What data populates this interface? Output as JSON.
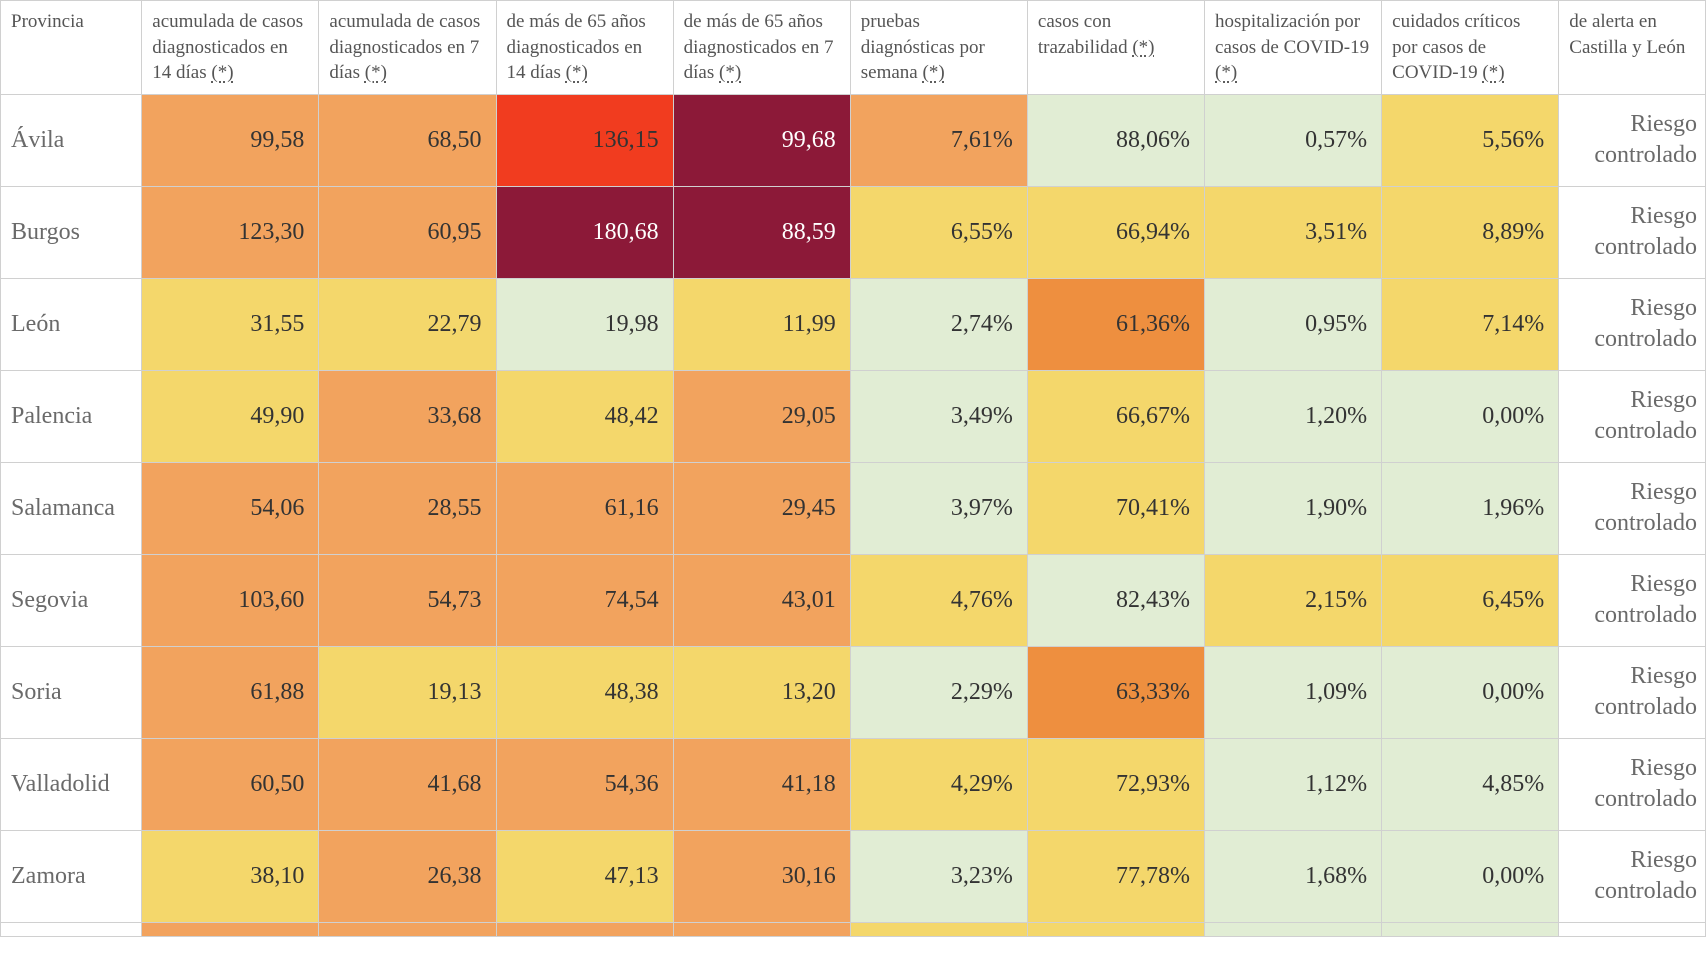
{
  "colors": {
    "orange_med": "#f2a35e",
    "orange_dark": "#ee8f3f",
    "yellow": "#f4d76b",
    "yellow_light": "#f6df8b",
    "green_light": "#e1edd4",
    "green_pale": "#ecf3e3",
    "red": "#f13c1f",
    "maroon": "#8c1938",
    "white": "#ffffff"
  },
  "headers": [
    "Provincia",
    "acumulada de casos diagnosticados en 14 días",
    "acumulada de casos diagnosticados en 7 días",
    "de más de 65 años diagnosticados en 14 días",
    "de más de 65 años diagnosticados en 7 días",
    "pruebas diagnósticas por semana",
    "casos con trazabilidad",
    "hospitalización por casos de COVID-19",
    "cuidados críticos por casos de COVID-19",
    "de alerta en Castilla y León"
  ],
  "header_has_asterisk": [
    false,
    true,
    true,
    true,
    true,
    true,
    true,
    true,
    true,
    false
  ],
  "rows": [
    {
      "prov": "Ávila",
      "cells": [
        {
          "v": "99,58",
          "c": "orange_med"
        },
        {
          "v": "68,50",
          "c": "orange_med"
        },
        {
          "v": "136,15",
          "c": "red"
        },
        {
          "v": "99,68",
          "c": "maroon",
          "dark": true
        },
        {
          "v": "7,61%",
          "c": "orange_med"
        },
        {
          "v": "88,06%",
          "c": "green_light"
        },
        {
          "v": "0,57%",
          "c": "green_light"
        },
        {
          "v": "5,56%",
          "c": "yellow"
        }
      ],
      "state": "Riesgo controlado"
    },
    {
      "prov": "Burgos",
      "cells": [
        {
          "v": "123,30",
          "c": "orange_med"
        },
        {
          "v": "60,95",
          "c": "orange_med"
        },
        {
          "v": "180,68",
          "c": "maroon",
          "dark": true
        },
        {
          "v": "88,59",
          "c": "maroon",
          "dark": true
        },
        {
          "v": "6,55%",
          "c": "yellow"
        },
        {
          "v": "66,94%",
          "c": "yellow"
        },
        {
          "v": "3,51%",
          "c": "yellow"
        },
        {
          "v": "8,89%",
          "c": "yellow"
        }
      ],
      "state": "Riesgo controlado"
    },
    {
      "prov": "León",
      "cells": [
        {
          "v": "31,55",
          "c": "yellow"
        },
        {
          "v": "22,79",
          "c": "yellow"
        },
        {
          "v": "19,98",
          "c": "green_light"
        },
        {
          "v": "11,99",
          "c": "yellow"
        },
        {
          "v": "2,74%",
          "c": "green_light"
        },
        {
          "v": "61,36%",
          "c": "orange_dark"
        },
        {
          "v": "0,95%",
          "c": "green_light"
        },
        {
          "v": "7,14%",
          "c": "yellow"
        }
      ],
      "state": "Riesgo controlado"
    },
    {
      "prov": "Palencia",
      "cells": [
        {
          "v": "49,90",
          "c": "yellow"
        },
        {
          "v": "33,68",
          "c": "orange_med"
        },
        {
          "v": "48,42",
          "c": "yellow"
        },
        {
          "v": "29,05",
          "c": "orange_med"
        },
        {
          "v": "3,49%",
          "c": "green_light"
        },
        {
          "v": "66,67%",
          "c": "yellow"
        },
        {
          "v": "1,20%",
          "c": "green_light"
        },
        {
          "v": "0,00%",
          "c": "green_light"
        }
      ],
      "state": "Riesgo controlado"
    },
    {
      "prov": "Salamanca",
      "cells": [
        {
          "v": "54,06",
          "c": "orange_med"
        },
        {
          "v": "28,55",
          "c": "orange_med"
        },
        {
          "v": "61,16",
          "c": "orange_med"
        },
        {
          "v": "29,45",
          "c": "orange_med"
        },
        {
          "v": "3,97%",
          "c": "green_light"
        },
        {
          "v": "70,41%",
          "c": "yellow"
        },
        {
          "v": "1,90%",
          "c": "green_light"
        },
        {
          "v": "1,96%",
          "c": "green_light"
        }
      ],
      "state": "Riesgo controlado"
    },
    {
      "prov": "Segovia",
      "cells": [
        {
          "v": "103,60",
          "c": "orange_med"
        },
        {
          "v": "54,73",
          "c": "orange_med"
        },
        {
          "v": "74,54",
          "c": "orange_med"
        },
        {
          "v": "43,01",
          "c": "orange_med"
        },
        {
          "v": "4,76%",
          "c": "yellow"
        },
        {
          "v": "82,43%",
          "c": "green_light"
        },
        {
          "v": "2,15%",
          "c": "yellow"
        },
        {
          "v": "6,45%",
          "c": "yellow"
        }
      ],
      "state": "Riesgo controlado"
    },
    {
      "prov": "Soria",
      "cells": [
        {
          "v": "61,88",
          "c": "orange_med"
        },
        {
          "v": "19,13",
          "c": "yellow"
        },
        {
          "v": "48,38",
          "c": "yellow"
        },
        {
          "v": "13,20",
          "c": "yellow"
        },
        {
          "v": "2,29%",
          "c": "green_light"
        },
        {
          "v": "63,33%",
          "c": "orange_dark"
        },
        {
          "v": "1,09%",
          "c": "green_light"
        },
        {
          "v": "0,00%",
          "c": "green_light"
        }
      ],
      "state": "Riesgo controlado"
    },
    {
      "prov": "Valladolid",
      "cells": [
        {
          "v": "60,50",
          "c": "orange_med"
        },
        {
          "v": "41,68",
          "c": "orange_med"
        },
        {
          "v": "54,36",
          "c": "orange_med"
        },
        {
          "v": "41,18",
          "c": "orange_med"
        },
        {
          "v": "4,29%",
          "c": "yellow"
        },
        {
          "v": "72,93%",
          "c": "yellow"
        },
        {
          "v": "1,12%",
          "c": "green_light"
        },
        {
          "v": "4,85%",
          "c": "green_light"
        }
      ],
      "state": "Riesgo controlado"
    },
    {
      "prov": "Zamora",
      "cells": [
        {
          "v": "38,10",
          "c": "yellow"
        },
        {
          "v": "26,38",
          "c": "orange_med"
        },
        {
          "v": "47,13",
          "c": "yellow"
        },
        {
          "v": "30,16",
          "c": "orange_med"
        },
        {
          "v": "3,23%",
          "c": "green_light"
        },
        {
          "v": "77,78%",
          "c": "yellow"
        },
        {
          "v": "1,68%",
          "c": "green_light"
        },
        {
          "v": "0,00%",
          "c": "green_light"
        }
      ],
      "state": "Riesgo controlado"
    }
  ],
  "partial_row_colors": [
    "orange_med",
    "orange_med",
    "orange_med",
    "orange_med",
    "yellow",
    "yellow",
    "green_light",
    "green_light"
  ]
}
